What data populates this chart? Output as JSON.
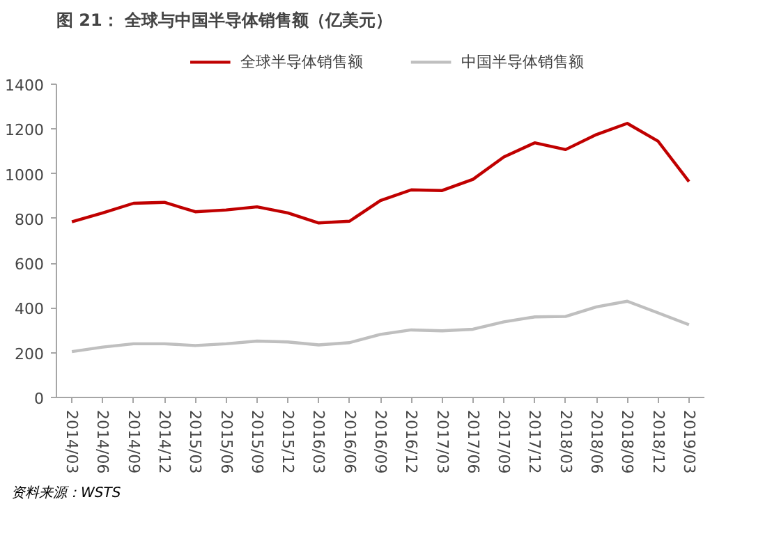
{
  "chart_data": {
    "type": "line",
    "title": "图 21：  全球与中国半导体销售额（亿美元）",
    "categories": [
      "2014/03",
      "2014/06",
      "2014/09",
      "2014/12",
      "2015/03",
      "2015/06",
      "2015/09",
      "2015/12",
      "2016/03",
      "2016/06",
      "2016/09",
      "2016/12",
      "2017/03",
      "2017/06",
      "2017/09",
      "2017/12",
      "2018/03",
      "2018/06",
      "2018/09",
      "2018/12",
      "2019/03"
    ],
    "series": [
      {
        "name": "全球半导体销售额",
        "color": "#c00000",
        "values": [
          785,
          825,
          868,
          872,
          830,
          838,
          852,
          825,
          780,
          788,
          880,
          928,
          925,
          975,
          1075,
          1138,
          1108,
          1175,
          1225,
          1145,
          965
        ]
      },
      {
        "name": "中国半导体销售额",
        "color": "#bfbfbf",
        "values": [
          205,
          225,
          240,
          240,
          232,
          240,
          252,
          248,
          235,
          245,
          282,
          302,
          298,
          305,
          338,
          360,
          362,
          405,
          430,
          378,
          325
        ]
      }
    ],
    "ylim": [
      0,
      1400
    ],
    "yticks": [
      0,
      200,
      400,
      600,
      800,
      1000,
      1200,
      1400
    ],
    "grid": false,
    "legend": "top",
    "marker": "none",
    "line_style": "solid",
    "annotations": [
      "资料来源：WSTS"
    ]
  }
}
